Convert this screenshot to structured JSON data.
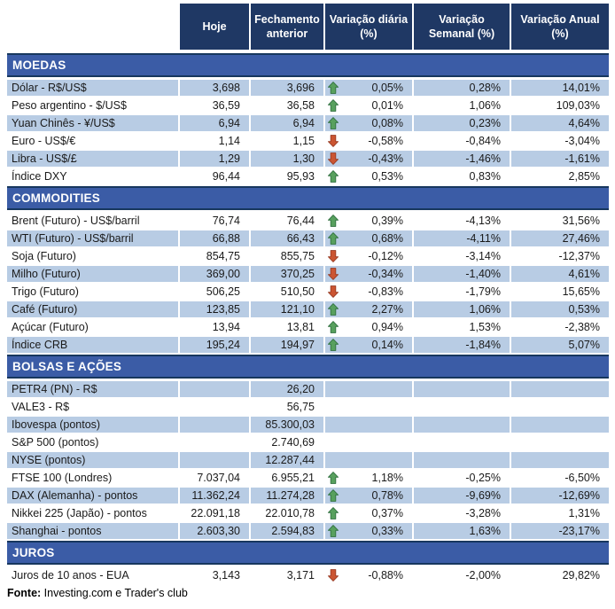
{
  "header": {
    "columns": [
      "Hoje",
      "Fechamento anterior",
      "Variação diária (%)",
      "Variação Semanal (%)",
      "Variação Anual (%)"
    ]
  },
  "sections": [
    {
      "title": "MOEDAS",
      "slug": "moedas",
      "rows": [
        {
          "label": "Dólar - R$/US$",
          "hoje": "3,698",
          "fechamento": "3,696",
          "trend": "up",
          "diaria": "0,05%",
          "semanal": "0,28%",
          "anual": "14,01%",
          "shaded": true
        },
        {
          "label": "Peso argentino - $/US$",
          "hoje": "36,59",
          "fechamento": "36,58",
          "trend": "up",
          "diaria": "0,01%",
          "semanal": "1,06%",
          "anual": "109,03%",
          "shaded": false
        },
        {
          "label": "Yuan Chinês - ¥/US$",
          "hoje": "6,94",
          "fechamento": "6,94",
          "trend": "up",
          "diaria": "0,08%",
          "semanal": "0,23%",
          "anual": "4,64%",
          "shaded": true
        },
        {
          "label": "Euro - US$/€",
          "hoje": "1,14",
          "fechamento": "1,15",
          "trend": "down",
          "diaria": "-0,58%",
          "semanal": "-0,84%",
          "anual": "-3,04%",
          "shaded": false
        },
        {
          "label": "Libra - US$/£",
          "hoje": "1,29",
          "fechamento": "1,30",
          "trend": "down",
          "diaria": "-0,43%",
          "semanal": "-1,46%",
          "anual": "-1,61%",
          "shaded": true
        },
        {
          "label": "Índice DXY",
          "hoje": "96,44",
          "fechamento": "95,93",
          "trend": "up",
          "diaria": "0,53%",
          "semanal": "0,83%",
          "anual": "2,85%",
          "shaded": false
        }
      ]
    },
    {
      "title": "COMMODITIES",
      "slug": "commodities",
      "rows": [
        {
          "label": "Brent (Futuro) - US$/barril",
          "hoje": "76,74",
          "fechamento": "76,44",
          "trend": "up",
          "diaria": "0,39%",
          "semanal": "-4,13%",
          "anual": "31,56%",
          "shaded": false
        },
        {
          "label": "WTI (Futuro) - US$/barril",
          "hoje": "66,88",
          "fechamento": "66,43",
          "trend": "up",
          "diaria": "0,68%",
          "semanal": "-4,11%",
          "anual": "27,46%",
          "shaded": true
        },
        {
          "label": "Soja (Futuro)",
          "hoje": "854,75",
          "fechamento": "855,75",
          "trend": "down",
          "diaria": "-0,12%",
          "semanal": "-3,14%",
          "anual": "-12,37%",
          "shaded": false
        },
        {
          "label": "Milho (Futuro)",
          "hoje": "369,00",
          "fechamento": "370,25",
          "trend": "down",
          "diaria": "-0,34%",
          "semanal": "-1,40%",
          "anual": "4,61%",
          "shaded": true
        },
        {
          "label": "Trigo (Futuro)",
          "hoje": "506,25",
          "fechamento": "510,50",
          "trend": "down",
          "diaria": "-0,83%",
          "semanal": "-1,79%",
          "anual": "15,65%",
          "shaded": false
        },
        {
          "label": "Café (Futuro)",
          "hoje": "123,85",
          "fechamento": "121,10",
          "trend": "up",
          "diaria": "2,27%",
          "semanal": "1,06%",
          "anual": "0,53%",
          "shaded": true
        },
        {
          "label": "Açúcar (Futuro)",
          "hoje": "13,94",
          "fechamento": "13,81",
          "trend": "up",
          "diaria": "0,94%",
          "semanal": "1,53%",
          "anual": "-2,38%",
          "shaded": false
        },
        {
          "label": "Índice CRB",
          "hoje": "195,24",
          "fechamento": "194,97",
          "trend": "up",
          "diaria": "0,14%",
          "semanal": "-1,84%",
          "anual": "5,07%",
          "shaded": true
        }
      ]
    },
    {
      "title": "BOLSAS E AÇÕES",
      "slug": "bolsas-e-acoes",
      "rows": [
        {
          "label": "PETR4 (PN) - R$",
          "hoje": "",
          "fechamento": "26,20",
          "trend": "",
          "diaria": "",
          "semanal": "",
          "anual": "",
          "shaded": true
        },
        {
          "label": "VALE3 - R$",
          "hoje": "",
          "fechamento": "56,75",
          "trend": "",
          "diaria": "",
          "semanal": "",
          "anual": "",
          "shaded": false
        },
        {
          "label": "Ibovespa (pontos)",
          "hoje": "",
          "fechamento": "85.300,03",
          "trend": "",
          "diaria": "",
          "semanal": "",
          "anual": "",
          "shaded": true
        },
        {
          "label": "S&P 500 (pontos)",
          "hoje": "",
          "fechamento": "2.740,69",
          "trend": "",
          "diaria": "",
          "semanal": "",
          "anual": "",
          "shaded": false
        },
        {
          "label": "NYSE (pontos)",
          "hoje": "",
          "fechamento": "12.287,44",
          "trend": "",
          "diaria": "",
          "semanal": "",
          "anual": "",
          "shaded": true
        },
        {
          "label": "FTSE 100 (Londres)",
          "hoje": "7.037,04",
          "fechamento": "6.955,21",
          "trend": "up",
          "diaria": "1,18%",
          "semanal": "-0,25%",
          "anual": "-6,50%",
          "shaded": false
        },
        {
          "label": "DAX (Alemanha) - pontos",
          "hoje": "11.362,24",
          "fechamento": "11.274,28",
          "trend": "up",
          "diaria": "0,78%",
          "semanal": "-9,69%",
          "anual": "-12,69%",
          "shaded": true
        },
        {
          "label": "Nikkei 225 (Japão) - pontos",
          "hoje": "22.091,18",
          "fechamento": "22.010,78",
          "trend": "up",
          "diaria": "0,37%",
          "semanal": "-3,28%",
          "anual": "1,31%",
          "shaded": false
        },
        {
          "label": "Shanghai - pontos",
          "hoje": "2.603,30",
          "fechamento": "2.594,83",
          "trend": "up",
          "diaria": "0,33%",
          "semanal": "1,63%",
          "anual": "-23,17%",
          "shaded": true
        }
      ]
    },
    {
      "title": "JUROS",
      "slug": "juros",
      "rows": [
        {
          "label": "Juros de 10 anos - EUA",
          "hoje": "3,143",
          "fechamento": "3,171",
          "trend": "down",
          "diaria": "-0,88%",
          "semanal": "-2,00%",
          "anual": "29,82%",
          "shaded": false
        }
      ]
    }
  ],
  "footer": {
    "label": "Fonte:",
    "text": " Investing.com e Trader's club"
  },
  "colors": {
    "header_bg": "#1F3864",
    "band_bg": "#3B5CA6",
    "band_border": "#17375E",
    "row_shade_bg": "#B8CCE4",
    "header_text": "#FFFFFF",
    "body_text": "#1A1A1A",
    "trend_up_fill": "#58A05E",
    "trend_up_stroke": "#2E6F3E",
    "trend_down_fill": "#CB5532",
    "trend_down_stroke": "#973A22"
  }
}
